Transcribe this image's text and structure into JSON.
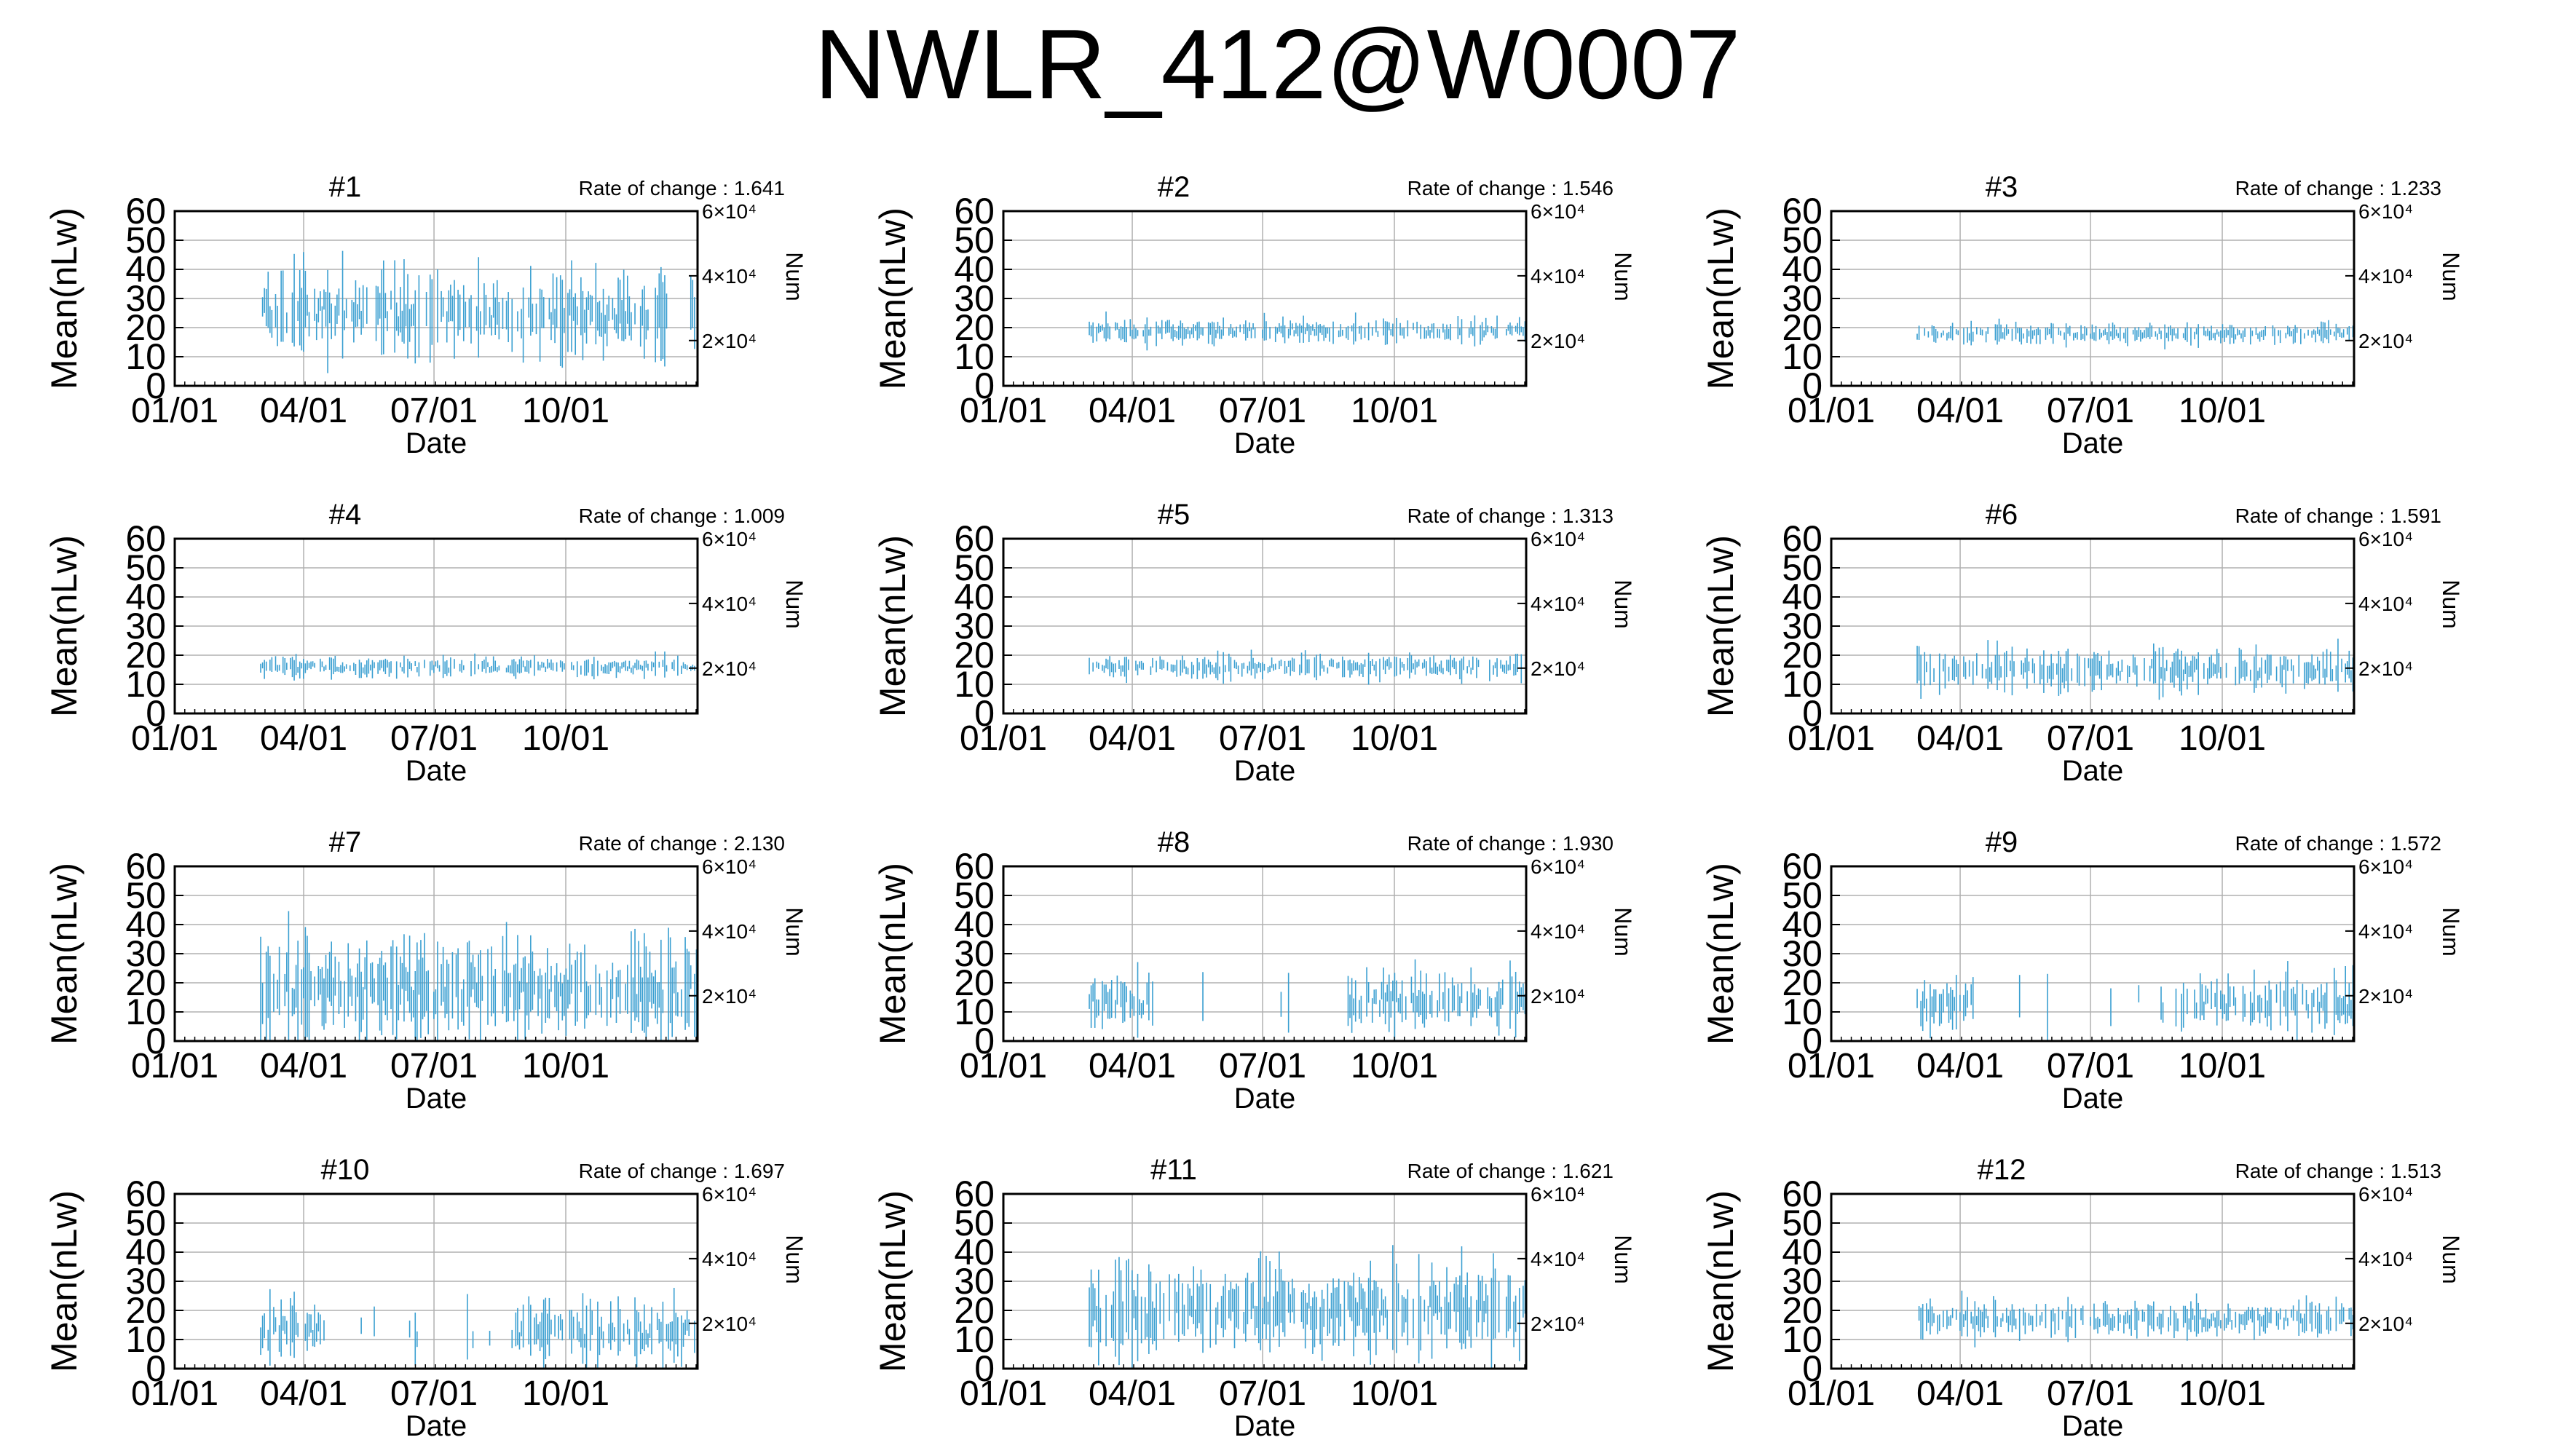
{
  "title": "NWLR_412@W0007",
  "colors": {
    "series": "#3a9fd1",
    "axis": "#000000",
    "grid": "#b0b0b0"
  },
  "axes": {
    "ylabel_left": "Mean(nLw)",
    "ylabel_right": "Num",
    "xlabel": "Date",
    "x_ticks": [
      "01/01",
      "04/01",
      "07/01",
      "10/01"
    ],
    "x_tick_days": [
      0,
      90,
      181,
      273
    ],
    "x_range_days": [
      0,
      365
    ],
    "y_ticks": [
      "0",
      "10",
      "20",
      "30",
      "40",
      "50",
      "60"
    ],
    "y_range": [
      0,
      60
    ],
    "y_right_ticks": [
      "2×10⁴",
      "4×10⁴",
      "6×10⁴"
    ],
    "y_right_values": [
      20000,
      40000,
      60000
    ],
    "y_right_range": [
      6000,
      60000
    ],
    "grid": true
  },
  "chart_data": [
    {
      "type": "scatter",
      "panel": "#1",
      "rate_of_change": "Rate of change : 1.641",
      "data_start_day": 60,
      "data_end_day": 365,
      "center": 25,
      "spread": 16,
      "gaps": [
        [
          345,
          360
        ]
      ]
    },
    {
      "type": "scatter",
      "panel": "#2",
      "rate_of_change": "Rate of change : 1.546",
      "data_start_day": 60,
      "data_end_day": 365,
      "center": 19,
      "spread": 5,
      "gaps": []
    },
    {
      "type": "scatter",
      "panel": "#3",
      "rate_of_change": "Rate of change : 1.233",
      "data_start_day": 60,
      "data_end_day": 365,
      "center": 18,
      "spread": 4,
      "gaps": []
    },
    {
      "type": "scatter",
      "panel": "#4",
      "rate_of_change": "Rate of change : 1.009",
      "data_start_day": 60,
      "data_end_day": 365,
      "center": 16,
      "spread": 4,
      "gaps": []
    },
    {
      "type": "scatter",
      "panel": "#5",
      "rate_of_change": "Rate of change : 1.313",
      "data_start_day": 60,
      "data_end_day": 365,
      "center": 16,
      "spread": 5,
      "gaps": []
    },
    {
      "type": "scatter",
      "panel": "#6",
      "rate_of_change": "Rate of change : 1.591",
      "data_start_day": 60,
      "data_end_day": 365,
      "center": 15,
      "spread": 8,
      "gaps": []
    },
    {
      "type": "scatter",
      "panel": "#7",
      "rate_of_change": "Rate of change : 2.130",
      "data_start_day": 60,
      "data_end_day": 365,
      "center": 18,
      "spread": 20,
      "gaps": []
    },
    {
      "type": "scatter",
      "panel": "#8",
      "rate_of_change": "Rate of change : 1.930",
      "data_start_day": 60,
      "data_end_day": 365,
      "center": 14,
      "spread": 12,
      "gaps": [
        [
          105,
          240
        ]
      ]
    },
    {
      "type": "scatter",
      "panel": "#9",
      "rate_of_change": "Rate of change : 1.572",
      "data_start_day": 60,
      "data_end_day": 365,
      "center": 13,
      "spread": 12,
      "gaps": [
        [
          100,
          240
        ]
      ]
    },
    {
      "type": "scatter",
      "panel": "#10",
      "rate_of_change": "Rate of change : 1.697",
      "data_start_day": 60,
      "data_end_day": 365,
      "center": 13,
      "spread": 12,
      "gaps": [
        [
          105,
          235
        ]
      ]
    },
    {
      "type": "scatter",
      "panel": "#11",
      "rate_of_change": "Rate of change : 1.621",
      "data_start_day": 60,
      "data_end_day": 365,
      "center": 20,
      "spread": 18,
      "gaps": []
    },
    {
      "type": "scatter",
      "panel": "#12",
      "rate_of_change": "Rate of change : 1.513",
      "data_start_day": 60,
      "data_end_day": 365,
      "center": 17,
      "spread": 7,
      "gaps": []
    }
  ]
}
